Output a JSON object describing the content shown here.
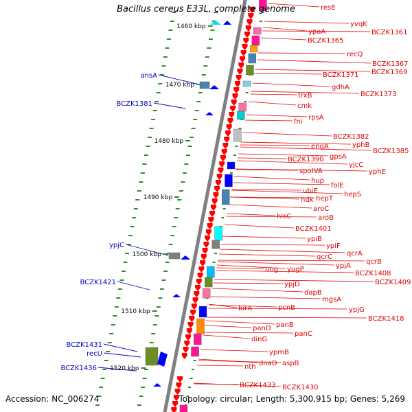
{
  "title": "Bacillus cereus E33L, complete genome",
  "accession_text": "Accession: NC_006274",
  "topology_text": "Topology: circular; Length: 5,300,915 bp; Genes: 5,269",
  "colors": {
    "backbone": "#808080",
    "tick": "#2e8b2e",
    "right_label": "#e00000",
    "left_label": "#0000c0",
    "scale_label": "#000000"
  },
  "scale_labels": [
    "1460 kbp",
    "1470 kbp",
    "1480 kbp",
    "1490 kbp",
    "1500 kbp",
    "1510 kbp",
    "1520 kbp"
  ],
  "right_labels": [
    "resE",
    "yvqK",
    "BCZK1361",
    "ypaA",
    "BCZK1365",
    "recQ",
    "BCZK1367",
    "BCZK1369",
    "BCZK1371",
    "gdhA",
    "BCZK1373",
    "trxB",
    "cmk",
    "rpsA",
    "fni",
    "BCZK1382",
    "yphB",
    "engA",
    "BCZK1385",
    "gpsA",
    "BCZK1390",
    "yjcC",
    "yphE",
    "spoIVA",
    "hup",
    "folE",
    "ubiE",
    "hepS",
    "ndk",
    "hepT",
    "aroC",
    "hisC",
    "aroB",
    "BCZK1401",
    "ypiB",
    "ypiF",
    "qcrA",
    "qcrC",
    "qcrB",
    "ypjA",
    "BCZK1408",
    "ung",
    "yugP",
    "BCZK1409",
    "ypjD",
    "dapB",
    "mgsA",
    "ypjG",
    "birA",
    "pcnB",
    "BCZK1418",
    "panB",
    "panD",
    "panC",
    "dinG",
    "ypmB",
    "nth",
    "dnaD",
    "aspB",
    "BCZK1433",
    "BCZK1430"
  ],
  "left_labels": [
    "ansA",
    "BCZK1381",
    "ypjC",
    "BCZK1421",
    "BCZK1431",
    "recU",
    "BCZK1436"
  ]
}
